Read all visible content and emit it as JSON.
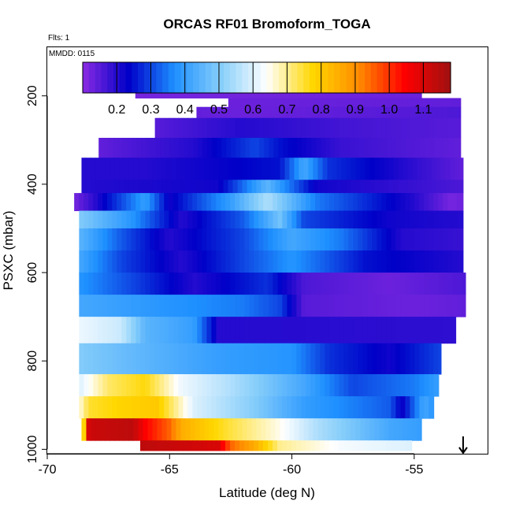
{
  "chart_data": {
    "type": "heatmap",
    "title": "ORCAS RF01 Bromoform_TOGA",
    "annotations": {
      "flights": "Flts: 1",
      "date": "MMDD: 0115"
    },
    "xlabel": "Latitude (deg N)",
    "ylabel": "PSXC (mbar)",
    "xlim": [
      -70,
      -52
    ],
    "ylim": [
      1010,
      90
    ],
    "y_reversed": true,
    "x_ticks": [
      -70,
      -65,
      -60,
      -55
    ],
    "y_ticks": [
      200,
      400,
      600,
      800,
      1000
    ],
    "colorbar": {
      "ticks": [
        0.2,
        0.3,
        0.4,
        0.5,
        0.6,
        0.7,
        0.8,
        0.9,
        1.0,
        1.1
      ],
      "tick_labels": [
        "0.2",
        "0.3",
        "0.4",
        "0.5",
        "0.6",
        "0.7",
        "0.8",
        "0.9",
        "1.0",
        "1.1"
      ],
      "range": [
        0.1,
        1.18
      ],
      "colors": [
        "#8a2be2",
        "#0000c8",
        "#1e90ff",
        "#87cefa",
        "#ffffff",
        "#ffd700",
        "#ff8c00",
        "#ff0000",
        "#a01010"
      ]
    },
    "arrow_marker_latitude": -53,
    "bands": [
      {
        "p": [
          175,
          190
        ],
        "lat": [
          -67.0,
          -54.7
        ],
        "stops": [
          [
            -67.0,
            0.12
          ],
          [
            -55.0,
            0.12
          ],
          [
            -54.8,
            0.2
          ]
        ]
      },
      {
        "p": [
          190,
          205
        ],
        "lat": [
          -66.4,
          -54.7
        ],
        "stops": [
          [
            -66.4,
            0.12
          ],
          [
            -54.7,
            0.13
          ]
        ]
      },
      {
        "p": [
          205,
          225
        ],
        "lat": [
          -62.6,
          -53.1
        ],
        "stops": [
          [
            -62.6,
            0.13
          ],
          [
            -53.1,
            0.14
          ]
        ]
      },
      {
        "p": [
          225,
          250
        ],
        "lat": [
          -63.9,
          -53.1
        ],
        "stops": [
          [
            -63.9,
            0.14
          ],
          [
            -62.0,
            0.13
          ],
          [
            -53.1,
            0.16
          ]
        ]
      },
      {
        "p": [
          250,
          295
        ],
        "lat": [
          -65.6,
          -53.1
        ],
        "stops": [
          [
            -65.6,
            0.15
          ],
          [
            -62.0,
            0.2
          ],
          [
            -58.0,
            0.17
          ],
          [
            -53.1,
            0.15
          ]
        ]
      },
      {
        "p": [
          295,
          340
        ],
        "lat": [
          -67.9,
          -53.1
        ],
        "stops": [
          [
            -67.9,
            0.14
          ],
          [
            -64.0,
            0.2
          ],
          [
            -61.5,
            0.3
          ],
          [
            -60.5,
            0.25
          ],
          [
            -58.0,
            0.18
          ],
          [
            -53.1,
            0.14
          ]
        ]
      },
      {
        "p": [
          340,
          390
        ],
        "lat": [
          -68.6,
          -53.0
        ],
        "stops": [
          [
            -68.6,
            0.2
          ],
          [
            -66.0,
            0.2
          ],
          [
            -60.5,
            0.25
          ],
          [
            -59.5,
            0.42
          ],
          [
            -58.5,
            0.28
          ],
          [
            -53.0,
            0.14
          ]
        ]
      },
      {
        "p": [
          390,
          420
        ],
        "lat": [
          -68.6,
          -53.0
        ],
        "stops": [
          [
            -68.6,
            0.2
          ],
          [
            -63.0,
            0.22
          ],
          [
            -61.0,
            0.45
          ],
          [
            -59.0,
            0.22
          ],
          [
            -53.0,
            0.16
          ]
        ]
      },
      {
        "p": [
          420,
          460
        ],
        "lat": [
          -68.9,
          -53.0
        ],
        "stops": [
          [
            -68.9,
            0.12
          ],
          [
            -68.0,
            0.2
          ],
          [
            -66.0,
            0.4
          ],
          [
            -65.0,
            0.22
          ],
          [
            -62.5,
            0.4
          ],
          [
            -61.0,
            0.55
          ],
          [
            -59.0,
            0.35
          ],
          [
            -55.0,
            0.2
          ],
          [
            -53.5,
            0.12
          ],
          [
            -53.0,
            0.13
          ]
        ]
      },
      {
        "p": [
          460,
          500
        ],
        "lat": [
          -68.7,
          -53.0
        ],
        "stops": [
          [
            -68.7,
            0.5
          ],
          [
            -66.5,
            0.38
          ],
          [
            -64.5,
            0.2
          ],
          [
            -62.0,
            0.32
          ],
          [
            -60.5,
            0.48
          ],
          [
            -59.5,
            0.3
          ],
          [
            -56.0,
            0.22
          ],
          [
            -53.0,
            0.2
          ]
        ]
      },
      {
        "p": [
          500,
          550
        ],
        "lat": [
          -68.7,
          -53.0
        ],
        "stops": [
          [
            -68.7,
            0.45
          ],
          [
            -67.0,
            0.32
          ],
          [
            -65.0,
            0.2
          ],
          [
            -62.0,
            0.3
          ],
          [
            -60.0,
            0.42
          ],
          [
            -58.0,
            0.35
          ],
          [
            -55.5,
            0.2
          ],
          [
            -53.0,
            0.18
          ]
        ]
      },
      {
        "p": [
          550,
          600
        ],
        "lat": [
          -68.7,
          -53.0
        ],
        "stops": [
          [
            -68.7,
            0.42
          ],
          [
            -67.0,
            0.3
          ],
          [
            -64.5,
            0.2
          ],
          [
            -62.0,
            0.3
          ],
          [
            -60.0,
            0.38
          ],
          [
            -57.0,
            0.25
          ],
          [
            -53.0,
            0.2
          ]
        ]
      },
      {
        "p": [
          600,
          650
        ],
        "lat": [
          -68.7,
          -52.9
        ],
        "stops": [
          [
            -68.7,
            0.38
          ],
          [
            -66.5,
            0.3
          ],
          [
            -64.0,
            0.2
          ],
          [
            -61.0,
            0.28
          ],
          [
            -59.5,
            0.16
          ],
          [
            -56.0,
            0.13
          ],
          [
            -52.9,
            0.16
          ]
        ]
      },
      {
        "p": [
          650,
          700
        ],
        "lat": [
          -68.7,
          -52.9
        ],
        "stops": [
          [
            -68.7,
            0.42
          ],
          [
            -65.0,
            0.38
          ],
          [
            -62.0,
            0.35
          ],
          [
            -60.5,
            0.3
          ],
          [
            -59.5,
            0.15
          ],
          [
            -55.0,
            0.13
          ],
          [
            -52.9,
            0.14
          ]
        ]
      },
      {
        "p": [
          700,
          760
        ],
        "lat": [
          -68.7,
          -53.3
        ],
        "stops": [
          [
            -68.7,
            0.62
          ],
          [
            -67.0,
            0.58
          ],
          [
            -66.0,
            0.45
          ],
          [
            -64.0,
            0.4
          ],
          [
            -63.0,
            0.2
          ],
          [
            -53.3,
            0.19
          ]
        ]
      },
      {
        "p": [
          760,
          830
        ],
        "lat": [
          -68.7,
          -53.9
        ],
        "stops": [
          [
            -68.7,
            0.5
          ],
          [
            -66.0,
            0.45
          ],
          [
            -63.0,
            0.4
          ],
          [
            -60.0,
            0.38
          ],
          [
            -58.5,
            0.28
          ],
          [
            -56.0,
            0.22
          ],
          [
            -53.9,
            0.3
          ]
        ]
      },
      {
        "p": [
          830,
          880
        ],
        "lat": [
          -68.7,
          -54.0
        ],
        "stops": [
          [
            -68.7,
            0.6
          ],
          [
            -67.5,
            0.72
          ],
          [
            -66.0,
            0.77
          ],
          [
            -64.5,
            0.62
          ],
          [
            -62.5,
            0.55
          ],
          [
            -59.5,
            0.42
          ],
          [
            -57.5,
            0.3
          ],
          [
            -55.0,
            0.35
          ],
          [
            -54.0,
            0.4
          ]
        ]
      },
      {
        "p": [
          880,
          930
        ],
        "lat": [
          -68.7,
          -54.2
        ],
        "stops": [
          [
            -68.7,
            0.65
          ],
          [
            -68.3,
            0.75
          ],
          [
            -67.0,
            0.78
          ],
          [
            -65.5,
            0.8
          ],
          [
            -64.0,
            0.6
          ],
          [
            -61.5,
            0.5
          ],
          [
            -59.5,
            0.4
          ],
          [
            -56.0,
            0.32
          ],
          [
            -55.5,
            0.22
          ],
          [
            -54.6,
            0.42
          ],
          [
            -54.2,
            0.38
          ]
        ]
      },
      {
        "p": [
          930,
          980
        ],
        "lat": [
          -68.6,
          -54.7
        ],
        "stops": [
          [
            -68.6,
            0.62
          ],
          [
            -68.3,
            1.12
          ],
          [
            -66.5,
            1.14
          ],
          [
            -66.0,
            1.05
          ],
          [
            -65.0,
            0.95
          ],
          [
            -64.5,
            0.85
          ],
          [
            -62.7,
            0.75
          ],
          [
            -60.5,
            0.65
          ],
          [
            -59.0,
            0.55
          ],
          [
            -56.0,
            0.42
          ],
          [
            -54.7,
            0.4
          ]
        ]
      },
      {
        "p": [
          980,
          1003
        ],
        "lat": [
          -66.2,
          -55.1
        ],
        "stops": [
          [
            -66.2,
            1.14
          ],
          [
            -63.0,
            1.1
          ],
          [
            -62.5,
            0.95
          ],
          [
            -61.5,
            0.85
          ],
          [
            -60.5,
            0.7
          ],
          [
            -58.0,
            0.63
          ],
          [
            -55.1,
            0.6
          ]
        ]
      }
    ]
  }
}
